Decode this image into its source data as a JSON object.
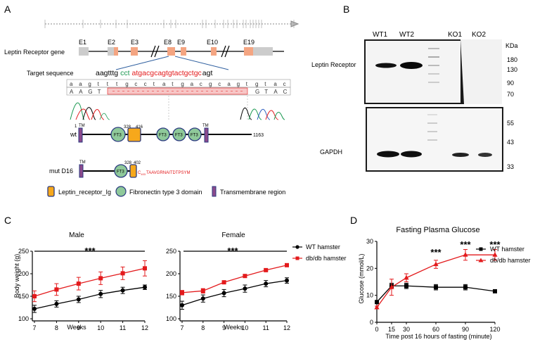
{
  "panel_letters": [
    "A",
    "B",
    "C",
    "D"
  ],
  "panel_a": {
    "gene_label": "Leptin Receptor gene",
    "exons": [
      "E1",
      "E2",
      "E3",
      "E8",
      "E9",
      "E10",
      "E19"
    ],
    "target_label": "Target sequence",
    "target_seq": {
      "part1": "aagtttg",
      "part2": "cct",
      "part3": "atgacgcagtgtactgctgc",
      "part4": "agt"
    },
    "ref_letters": [
      "a",
      "a",
      "g",
      "t",
      "t",
      "t",
      "g",
      "c",
      "c",
      "t",
      "a",
      "t",
      "g",
      "a",
      "c",
      "g",
      "c",
      "a",
      "g",
      "t",
      "g",
      "t",
      "a",
      "c"
    ],
    "mut_left": [
      "A",
      "A",
      "G",
      "T"
    ],
    "mut_right": [
      "G",
      "T",
      "A",
      "C"
    ],
    "wt_label": "wt",
    "mut_label": "mut D16",
    "wt_end": "1163",
    "wt_start": "1",
    "tm": "TM",
    "ft3": "FT3",
    "wt_domain_pos": [
      "328",
      "416"
    ],
    "mut_domain_pos": [
      "328",
      "402"
    ],
    "mut_tail": "TAAVGRNAITDTPSYM",
    "mut_tail_c": "C",
    "mut_tail_sub": "403",
    "legend": {
      "ig": "Leptin_receptor_Ig",
      "fn3": "Fibronectin type 3 domain",
      "tm": "Transmembrane region"
    },
    "colors": {
      "exon": "#f4a582",
      "utr": "#cccccc",
      "ig": "#f7a81b",
      "fn3": "#8fc99a",
      "tm": "#8c4a8c",
      "red": "#e31a1c",
      "green": "#1a9850"
    }
  },
  "panel_b": {
    "lanes": [
      "WT1",
      "WT2",
      "KO1",
      "KO2"
    ],
    "kda_label": "KDa",
    "top_label": "Leptin Receptor",
    "bottom_label": "GAPDH",
    "top_markers": [
      "180",
      "130",
      "90",
      "70"
    ],
    "bottom_markers": [
      "55",
      "43",
      "33"
    ]
  },
  "chart_data": [
    {
      "type": "line",
      "panel": "C-male",
      "title": "Male",
      "xlabel": "Weeks",
      "ylabel": "Body weight (g)",
      "x": [
        7,
        8,
        9,
        10,
        11,
        12
      ],
      "xlim": [
        7,
        12
      ],
      "ylim": [
        100,
        250
      ],
      "yticks": [
        100,
        150,
        200,
        250
      ],
      "significance": "***",
      "series": [
        {
          "values": [
            122,
            133,
            143,
            155,
            163,
            170
          ],
          "errors": [
            8,
            7,
            7,
            8,
            7,
            5
          ],
          "color": "#000000",
          "marker": "circle"
        },
        {
          "values": [
            150,
            165,
            178,
            190,
            201,
            212
          ],
          "errors": [
            12,
            13,
            14,
            14,
            14,
            17
          ],
          "color": "#e31a1c",
          "marker": "square"
        }
      ]
    },
    {
      "type": "line",
      "panel": "C-female",
      "title": "Female",
      "xlabel": "Weeks",
      "x": [
        7,
        8,
        9,
        10,
        11,
        12
      ],
      "xlim": [
        7,
        12
      ],
      "ylim": [
        100,
        250
      ],
      "yticks": [
        100,
        150,
        200,
        250
      ],
      "significance": "***",
      "legend": [
        "WT hamster",
        "db/db hamster"
      ],
      "series": [
        {
          "name": "WT hamster",
          "values": [
            130,
            145,
            157,
            167,
            178,
            185
          ],
          "errors": [
            9,
            8,
            8,
            8,
            7,
            6
          ],
          "color": "#000000",
          "marker": "circle"
        },
        {
          "name": "db/db hamster",
          "values": [
            158,
            162,
            181,
            195,
            208,
            219
          ],
          "errors": [
            5,
            5,
            3,
            3,
            2,
            2
          ],
          "color": "#e31a1c",
          "marker": "square"
        }
      ]
    },
    {
      "type": "line",
      "panel": "D",
      "title": "Fasting Plasma Glucose",
      "xlabel": "Time post 16 hours of fasting (minute)",
      "ylabel": "Glucose (mmol/L)",
      "x": [
        0,
        15,
        30,
        60,
        90,
        120
      ],
      "xticks": [
        0,
        15,
        30,
        60,
        90,
        120
      ],
      "xlim": [
        0,
        120
      ],
      "ylim": [
        0,
        30
      ],
      "yticks": [
        0,
        10,
        20,
        30
      ],
      "significance_labels": [
        "***",
        "***",
        "***"
      ],
      "significance_x": [
        60,
        90,
        120
      ],
      "legend": [
        "WT hamster",
        "db/db hamster"
      ],
      "series": [
        {
          "name": "WT hamster",
          "values": [
            7.5,
            13.5,
            13.5,
            13.0,
            13.0,
            11.5
          ],
          "errors": [
            0.5,
            1.0,
            1.0,
            1.0,
            1.0,
            0.5
          ],
          "color": "#000000",
          "marker": "square"
        },
        {
          "name": "db/db hamster",
          "values": [
            5.5,
            13.0,
            16.5,
            21.5,
            25.0,
            25.0
          ],
          "errors": [
            0.5,
            3.0,
            1.5,
            1.5,
            2.0,
            2.0
          ],
          "color": "#e31a1c",
          "marker": "triangle"
        }
      ]
    }
  ]
}
